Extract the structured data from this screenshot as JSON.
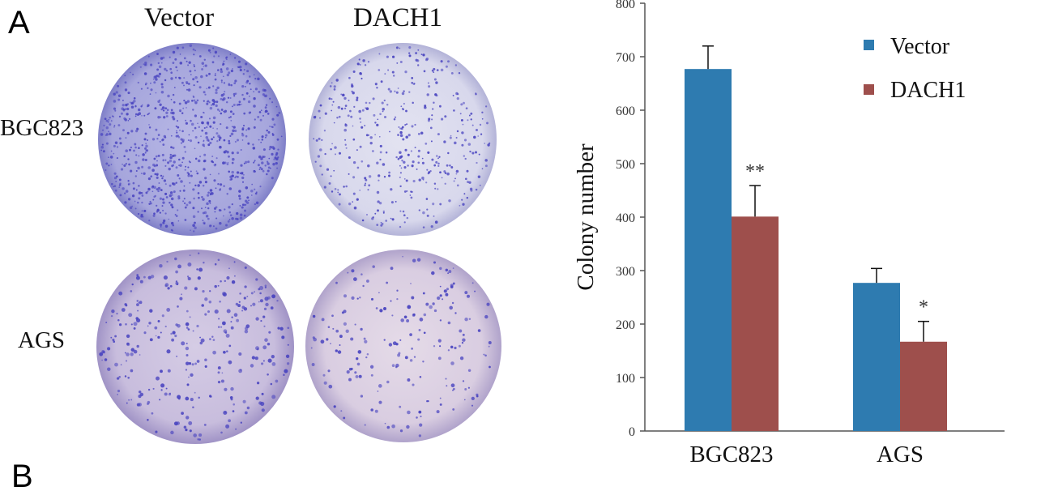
{
  "figure": {
    "panel_letter": "A",
    "next_panel_letter": "B"
  },
  "plates": {
    "columns": [
      "Vector",
      "DACH1"
    ],
    "rows": [
      "BGC823",
      "AGS"
    ]
  },
  "colors": {
    "vector": "#2e7bb0",
    "dach1": "#9e4f4c",
    "plate_stain": "#4a45c0",
    "axis": "#555555"
  },
  "chart_data": {
    "type": "bar",
    "categories": [
      "BGC823",
      "AGS"
    ],
    "series": [
      {
        "name": "Vector",
        "values": [
          677,
          277
        ],
        "errors": [
          43,
          27
        ]
      },
      {
        "name": "DACH1",
        "values": [
          401,
          167
        ],
        "errors": [
          58,
          38
        ]
      }
    ],
    "annotations": [
      "**",
      "*"
    ],
    "title": "",
    "xlabel": "",
    "ylabel": "Colony number",
    "ylim": [
      0,
      800
    ],
    "yticks": [
      0,
      100,
      200,
      300,
      400,
      500,
      600,
      700,
      800
    ],
    "grid": false,
    "legend_position": "top-right"
  }
}
